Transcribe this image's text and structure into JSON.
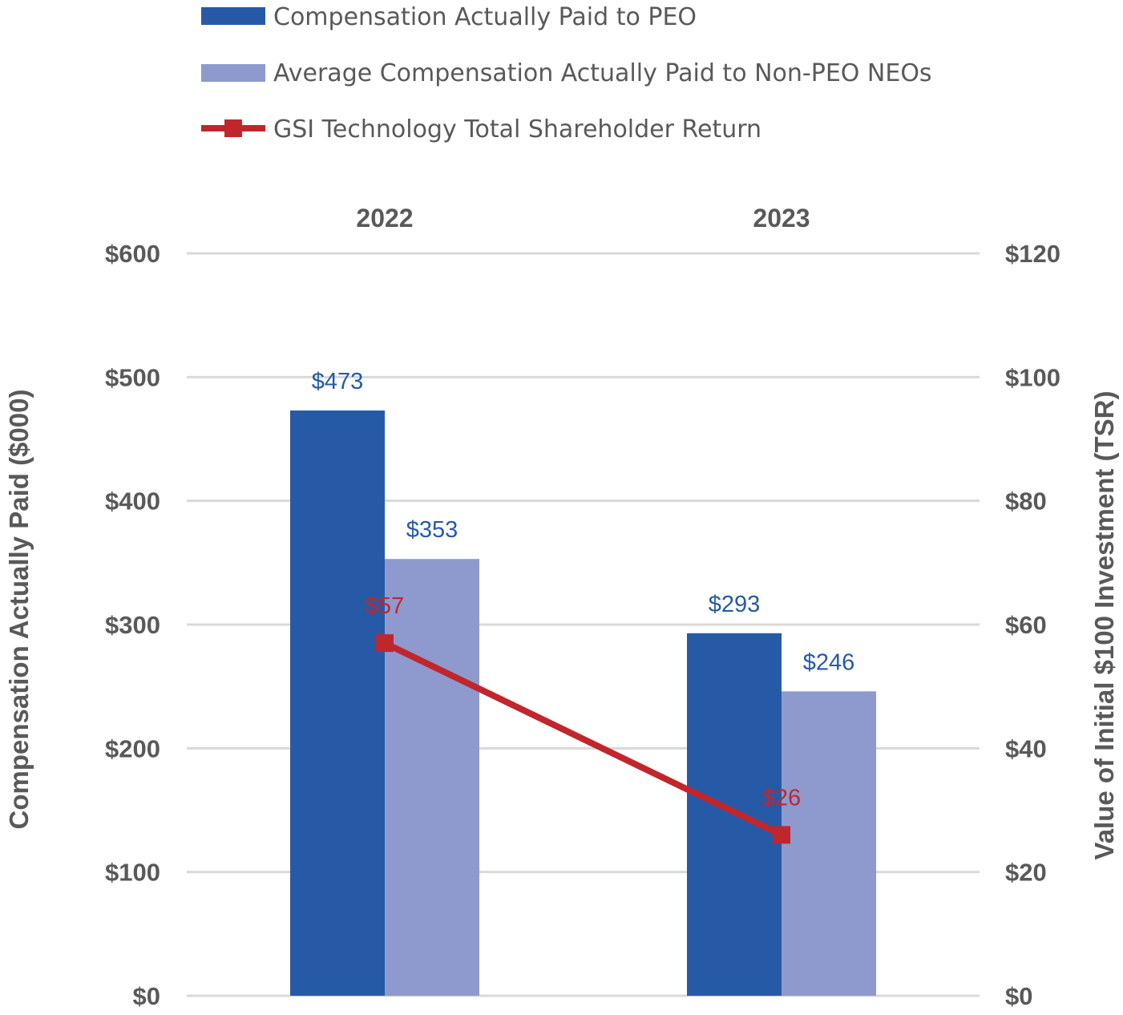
{
  "chart_data": {
    "type": "bar",
    "categories": [
      "2022",
      "2023"
    ],
    "series": [
      {
        "name": "Compensation Actually Paid to PEO",
        "type": "bar",
        "axis": "left",
        "color": "#265AA7",
        "values": [
          473,
          293
        ],
        "labels": [
          "$473",
          "$293"
        ],
        "label_color": "#265AA7"
      },
      {
        "name": "Average Compensation Actually Paid to Non-PEO NEOs",
        "type": "bar",
        "axis": "left",
        "color": "#8E9ACD",
        "values": [
          353,
          246
        ],
        "labels": [
          "$353",
          "$246"
        ],
        "label_color": "#265AA7"
      },
      {
        "name": "GSI Technology Total Shareholder Return",
        "type": "line",
        "marker": "square",
        "axis": "right",
        "color": "#C1262D",
        "values": [
          57,
          26
        ],
        "labels": [
          "$57",
          "$26"
        ],
        "label_color": "#C1262D"
      }
    ],
    "y_left": {
      "label": "Compensation Actually Paid ($000)",
      "min": 0,
      "max": 600,
      "ticks": [
        "$0",
        "$100",
        "$200",
        "$300",
        "$400",
        "$500",
        "$600"
      ]
    },
    "y_right": {
      "label": "Value of Initial $100 Investment (TSR)",
      "min": 0,
      "max": 120,
      "ticks": [
        "$0",
        "$20",
        "$40",
        "$60",
        "$80",
        "$100",
        "$120"
      ]
    },
    "grid": true,
    "legend": "top",
    "gridline_color": "#D9D9D9"
  }
}
